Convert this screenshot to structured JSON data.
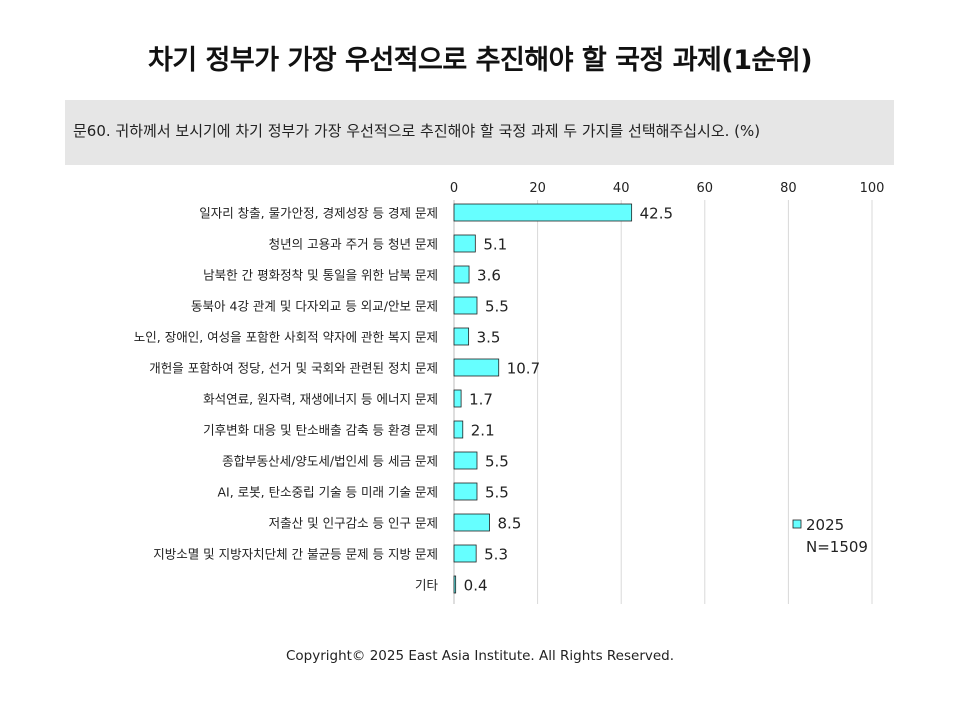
{
  "page": {
    "title": "차기 정부가 가장 우선적으로 추진해야 할 국정 과제(1순위)",
    "question": "문60. 귀하께서 보시기에 차기 정부가 가장 우선적으로 추진해야 할 국정 과제 두 가지를 선택해주십시오.   (%)",
    "footer": "Copyright© 2025 East Asia Institute. All Rights Reserved."
  },
  "colors": {
    "bar_fill": "#66ffff",
    "bar_stroke": "#222222",
    "grid": "#d9d9d9",
    "text": "#222222"
  },
  "chart_data": {
    "type": "bar",
    "orientation": "horizontal",
    "unit": "(%)",
    "xlim": [
      0,
      100
    ],
    "ticks": [
      0,
      20,
      40,
      60,
      80,
      100
    ],
    "grid": true,
    "legend_position": "bottom-right",
    "categories": [
      "일자리 창출, 물가안정, 경제성장 등 경제 문제",
      "청년의 고용과 주거 등 청년 문제",
      "남북한 간 평화정착 및 통일을 위한 남북 문제",
      "동북아 4강 관계 및 다자외교 등 외교/안보 문제",
      "노인, 장애인, 여성을 포함한 사회적 약자에 관한 복지 문제",
      "개헌을 포함하여 정당, 선거 및 국회와 관련된 정치 문제",
      "화석연료, 원자력, 재생에너지 등 에너지 문제",
      "기후변화 대응 및 탄소배출 감축 등 환경 문제",
      "종합부동산세/양도세/법인세 등 세금 문제",
      "AI, 로봇, 탄소중립 기술 등 미래 기술 문제",
      "저출산 및 인구감소 등 인구 문제",
      "지방소멸 및 지방자치단체 간 불균등 문제 등 지방 문제",
      "기타"
    ],
    "series": [
      {
        "name": "2025",
        "values": [
          42.5,
          5.1,
          3.6,
          5.5,
          3.5,
          10.7,
          1.7,
          2.1,
          5.5,
          5.5,
          8.5,
          5.3,
          0.4
        ]
      }
    ],
    "legend_note": "N=1509"
  }
}
